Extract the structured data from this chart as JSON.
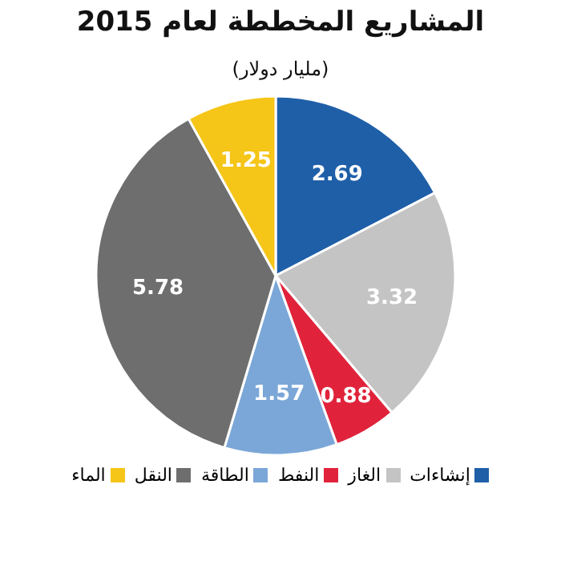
{
  "chart_data": {
    "type": "pie",
    "title": "المشاريع المخططة لعام 2015",
    "subtitle": "(مليار دولار)",
    "categories": [
      "إنشاءات",
      "الغاز",
      "النفط",
      "الطاقة",
      "النقل",
      "الماء"
    ],
    "values": [
      2.69,
      3.32,
      0.88,
      1.57,
      5.78,
      1.25
    ],
    "colors": [
      "#1f5fa8",
      "#c4c4c4",
      "#e0233b",
      "#7ba7d8",
      "#6e6e6e",
      "#f5c518"
    ],
    "data_labels": true,
    "legend": "bottom"
  }
}
